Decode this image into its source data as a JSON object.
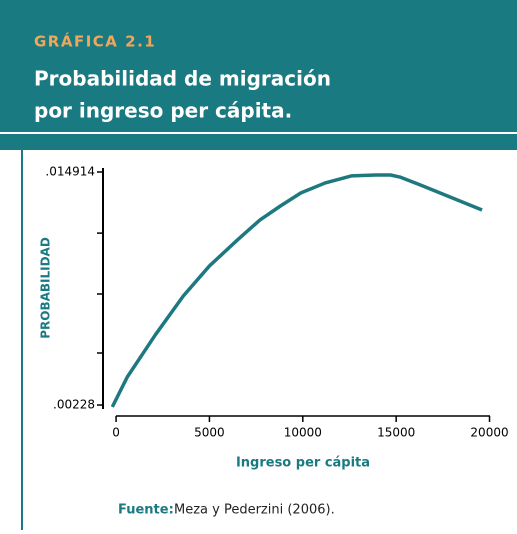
{
  "chart_data": {
    "type": "line",
    "label": "GRÁFICA 2.1",
    "title_lines": [
      "Probabilidad de migración",
      "por ingreso per cápita."
    ],
    "x_label": "Ingreso per cápita",
    "y_label": "PROBABILIDAD",
    "source_label": "Fuente:",
    "source": "Meza y Pederzini (2006).",
    "x": [
      -200,
      600,
      2100,
      3600,
      5000,
      6500,
      7700,
      8800,
      9900,
      11200,
      12600,
      13900,
      14700,
      15200,
      16300,
      19600
    ],
    "series": [
      {
        "color": "#1d7880",
        "values": [
          0.00218,
          0.0038,
          0.00608,
          0.00819,
          0.00982,
          0.01123,
          0.01231,
          0.01307,
          0.01378,
          0.01432,
          0.0147,
          0.01475,
          0.01475,
          0.01464,
          0.01421,
          0.01285
        ]
      }
    ],
    "xlim": [
      -700,
      20400
    ],
    "xticks": [
      0,
      5000,
      10000,
      15000,
      20000
    ],
    "ylim": [
      0.0022,
      0.015
    ],
    "yticks": [
      {
        "value": 0.00228,
        "label": ".00228"
      },
      {
        "value": 0.014914,
        "label": ".014914"
      }
    ],
    "y_minor_ticks": [
      0.0051,
      0.0083,
      0.0116
    ]
  }
}
